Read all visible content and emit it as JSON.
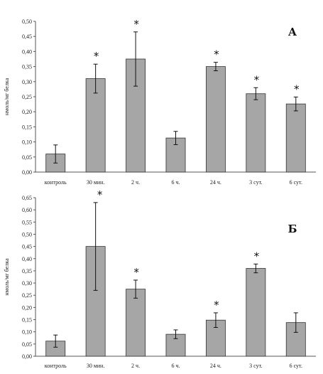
{
  "colors": {
    "bar": "#a6a6a6",
    "bar_stroke": "#333333",
    "axis": "#555555"
  },
  "chart_data": [
    {
      "type": "bar",
      "panel_label": "А",
      "ylabel": "нмоль/мг белка",
      "ylim": [
        0,
        0.5
      ],
      "ytick_step": 0.05,
      "categories": [
        "контроль",
        "30 мин.",
        "2 ч.",
        "6 ч.",
        "24 ч.",
        "3 сут.",
        "6 сут."
      ],
      "values": [
        0.06,
        0.31,
        0.375,
        0.113,
        0.35,
        0.26,
        0.226
      ],
      "errors": [
        0.03,
        0.048,
        0.09,
        0.022,
        0.014,
        0.02,
        0.023
      ],
      "significant": [
        false,
        true,
        true,
        false,
        true,
        true,
        true
      ],
      "star_symbol": "*"
    },
    {
      "type": "bar",
      "panel_label": "Б",
      "ylabel": "нмоль/мг белка",
      "ylim": [
        0,
        0.65
      ],
      "ytick_step": 0.05,
      "categories": [
        "контроль",
        "30 мин.",
        "2 ч.",
        "6 ч.",
        "24 ч.",
        "3 сут.",
        "6 сут."
      ],
      "values": [
        0.062,
        0.45,
        0.275,
        0.09,
        0.148,
        0.36,
        0.138
      ],
      "errors": [
        0.025,
        0.18,
        0.037,
        0.018,
        0.03,
        0.018,
        0.04
      ],
      "significant": [
        false,
        true,
        true,
        false,
        true,
        true,
        false
      ],
      "star_symbol": "*"
    }
  ]
}
